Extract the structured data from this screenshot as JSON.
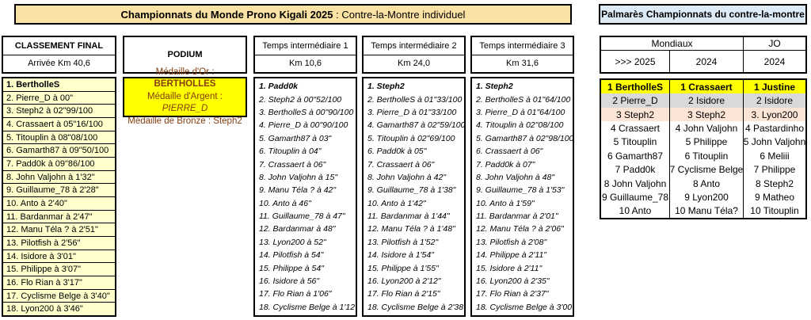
{
  "title": {
    "bold": "Championnats du Monde Prono Kigali 2025",
    "rest": " : Contre-la-Montre individuel"
  },
  "final": {
    "header_line1": "CLASSEMENT FINAL",
    "header_line2": "Arrivée Km 40,6",
    "rows": [
      "1. BertholleS",
      "2. Pierre_D à 00\"",
      "3. Steph2 à 02\"99/100",
      "4. Crassaert à 05\"16/100",
      "5. Titouplin à 08\"08/100",
      "6. Gamarth87 à 09\"50/100",
      "7. Padd0k à 09\"86/100",
      "8. John Valjohn à 1'32\"",
      "9. Guillaume_78 à 2'28\"",
      "10. Anto à 2'40\"",
      "11. Bardanmar à 2'47\"",
      "12. Manu Téla ? à 2'51\"",
      "13. Pilotfish à 2'56\"",
      "14. Isidore à 3'01\"",
      "15. Philippe à 3'07\"",
      "16. Flo Rian à 3'17\"",
      "17. Cyclisme Belge à 3'40\"",
      "18. Lyon200 à 3'46\""
    ]
  },
  "podium": {
    "header": "PODIUM",
    "gold_prefix": "Médaille d'Or : ",
    "gold_name": "BERTHOLLES",
    "silver_prefix": "Médaille d'Argent : ",
    "silver_name": "PIERRE_D",
    "bronze_prefix": "Médaille de Bronze : ",
    "bronze_name": "Steph2"
  },
  "ti1": {
    "header_line1": "Temps intermédiaire 1",
    "header_line2": "Km 10,6",
    "rows": [
      "1. Padd0k",
      "2. Steph2 à 00\"52/100",
      "3. BertholleS à 00\"90/100",
      "4. Pierre_D à 00\"90/100",
      "5. Gamarth87 à 03\"",
      "6. Titouplin à 04\"",
      "7. Crassaert à 06\"",
      "8. John Valjohn à 15\"",
      "9. Manu Téla ? à 42\"",
      "10. Anto à 46\"",
      "11. Guillaume_78 à 47\"",
      "12. Bardanmar à 48\"",
      "13. Lyon200 à 52\"",
      "14. Pilotfish à 54\"",
      "15. Philippe à 54\"",
      "16. Isidore à 56\"",
      "17. Flo Rian à 1'06\"",
      "18. Cyclisme Belge à 1'12\""
    ]
  },
  "ti2": {
    "header_line1": "Temps intermédiaire 2",
    "header_line2": "Km 24,0",
    "rows": [
      "1. Steph2",
      "2. BertholleS à 01\"33/100",
      "3. Pierre_D à 01\"33/100",
      "4. Gamarth87 à 02\"59/100",
      "5. Titouplin à 02\"69/100",
      "6. Padd0k à 05\"",
      "7. Crassaert à 06\"",
      "8. John Valjohn à 42\"",
      "9. Guillaume_78 à 1'38\"",
      "10. Anto à 1'42\"",
      "11. Bardanmar à 1'44\"",
      "12. Manu Téla ? à 1'48\"",
      "13. Pilotfish à 1'52\"",
      "14. Isidore à 1'54\"",
      "15. Philippe à 1'55\"",
      "16. Lyon200 à 2'12\"",
      "17. Flo Rian à 2'15\"",
      "18. Cyclisme Belge à 2'38\""
    ]
  },
  "ti3": {
    "header_line1": "Temps intermédiaire 3",
    "header_line2": "Km 31,6",
    "rows": [
      "1. Steph2",
      "2. BertholleS à 01\"64/100",
      "3. Pierre_D à 01\"64/100",
      "4. Titouplin à 02\"08/100",
      "5. Gamarth87 à 02\"98/100",
      "6. Crassaert à 06\"",
      "7. Padd0k à 07\"",
      "8. John Valjohn à 48\"",
      "9. Guillaume_78 à 1'53\"",
      "10. Anto à 1'59\"",
      "11. Bardanmar à 2'01\"",
      "12. Manu Téla ? à 2'06\"",
      "13. Pilotfish à 2'08\"",
      "14. Philippe à 2'11\"",
      "15. Isidore à 2'11\"",
      "16. Lyon200 à 2'35\"",
      "17. Flo Rian à 2'37\"",
      "18. Cyclisme Belge à 3'00\""
    ]
  },
  "palmares": {
    "title": "Palmarès Championnats du contre-la-montre",
    "group_headers": [
      "Mondiaux",
      "JO"
    ],
    "year_headers": [
      ">>> 2025",
      "2024",
      "2024"
    ],
    "rows": [
      [
        "1 BertholleS",
        "1 Crassaert",
        "1 Justine"
      ],
      [
        "2 Pierre_D",
        "2 Isidore",
        "2 Isidore"
      ],
      [
        "3 Steph2",
        "3 Steph2",
        "3. Lyon200"
      ],
      [
        "4 Crassaert",
        "4 John Valjohn",
        "4 Pastardinho"
      ],
      [
        "5 Titouplin",
        "5 Philippe",
        "5 John Valjohn"
      ],
      [
        "6 Gamarth87",
        "6 Titouplin",
        "6 Meliii"
      ],
      [
        "7 Padd0k",
        "7 Cyclisme Belge",
        "7 Philippe"
      ],
      [
        "8 John Valjohn",
        "8 Anto",
        "8 Steph2"
      ],
      [
        "9 Guillaume_78",
        "9 Lyon200",
        "9 Matheo"
      ],
      [
        "10 Anto",
        "10 Manu Téla?",
        "10 Titouplin"
      ]
    ]
  },
  "colors": {
    "title_bg": "#FAE1A4",
    "palmares_title_bg": "#DDEBF7",
    "list_bg": "#FFFFCC",
    "podium_bg": "#FFFF00",
    "gold_bg": "#FFFF00",
    "silver_bg": "#D9D9D9",
    "bronze_bg": "#FCE4D6",
    "podium_text": "#843C0C"
  }
}
